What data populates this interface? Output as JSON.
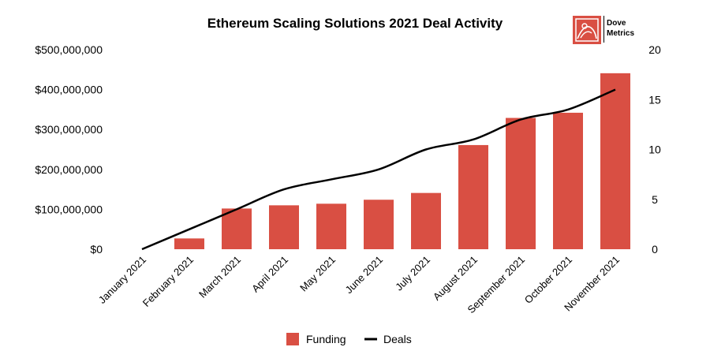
{
  "title": "Ethereum Scaling Solutions 2021 Deal Activity",
  "logo": {
    "line1": "Dove",
    "line2": "Metrics",
    "icon": "dove-metrics-logo-icon"
  },
  "colors": {
    "bar": "#d94f43",
    "line": "#000000"
  },
  "chart_data": {
    "type": "bar",
    "title": "Ethereum Scaling Solutions 2021 Deal Activity",
    "categories": [
      "January 2021",
      "February 2021",
      "March 2021",
      "April 2021",
      "May 2021",
      "June 2021",
      "July 2021",
      "August 2021",
      "September 2021",
      "October 2021",
      "November 2021"
    ],
    "series": [
      {
        "name": "Funding",
        "type": "bar",
        "axis": "left",
        "values": [
          0,
          27000000,
          102000000,
          110000000,
          114000000,
          124000000,
          141000000,
          261000000,
          329000000,
          342000000,
          441000000
        ]
      },
      {
        "name": "Deals",
        "type": "line",
        "axis": "right",
        "values": [
          0,
          2,
          4,
          6,
          7,
          8,
          10,
          11,
          13,
          14,
          16
        ]
      }
    ],
    "y_left": {
      "min": 0,
      "max": 500000000,
      "ticks": [
        "$0",
        "$100,000,000",
        "$200,000,000",
        "$300,000,000",
        "$400,000,000",
        "$500,000,000"
      ]
    },
    "y_right": {
      "min": 0,
      "max": 20,
      "ticks": [
        "0",
        "5",
        "10",
        "15",
        "20"
      ]
    },
    "grid": false,
    "legend": {
      "position": "bottom",
      "items": [
        "Funding",
        "Deals"
      ]
    }
  }
}
